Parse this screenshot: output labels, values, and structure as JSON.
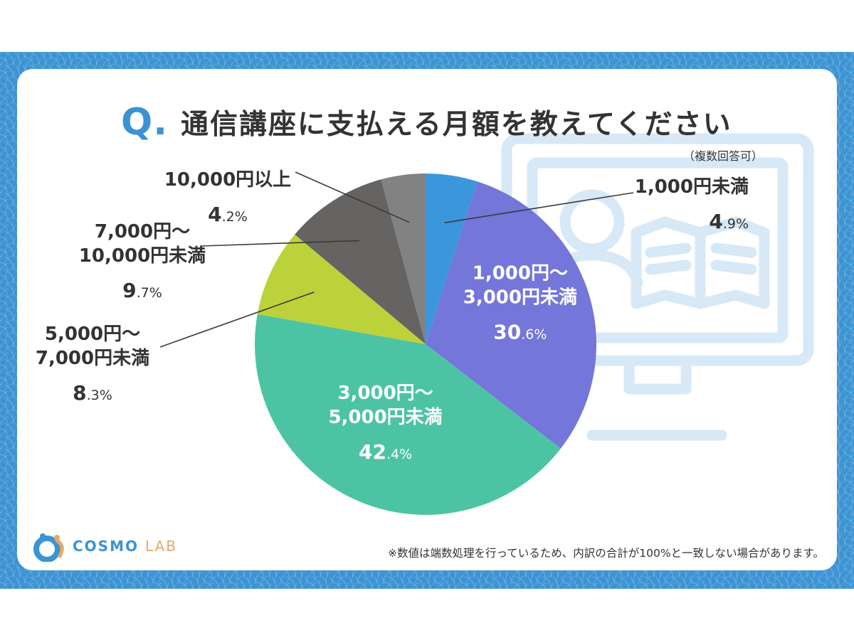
{
  "title": {
    "q_mark": "Q.",
    "text": "通信講座に支払える月額を教えてください",
    "note": "（複数回答可）"
  },
  "footnote": "※数値は端数処理を行っているため、内訳の合計が100%と一致しない場合があります。",
  "logo": {
    "main": "COSMO",
    "sub": "LAB"
  },
  "colors": {
    "frame": "#3c93d3",
    "card": "#ffffff",
    "background_icon": "#d7e8f6",
    "text": "#333333"
  },
  "icons": {
    "background": "monitor-reading-person-icon",
    "logo": "cosmo-lab-logo-icon"
  },
  "chart_data": {
    "type": "pie",
    "title": "通信講座に支払える月額を教えてください",
    "start_angle_deg": 0,
    "direction": "clockwise",
    "slices": [
      {
        "lines": [
          "1,000円未満"
        ],
        "big": "4",
        "small": ".9%",
        "value": 4.9,
        "color": "#3c96dc",
        "label_inside": false
      },
      {
        "lines": [
          "1,000円～",
          "3,000円未満"
        ],
        "big": "30",
        "small": ".6%",
        "value": 30.6,
        "color": "#7476d9",
        "label_inside": true
      },
      {
        "lines": [
          "3,000円～",
          "5,000円未満"
        ],
        "big": "42",
        "small": ".4%",
        "value": 42.4,
        "color": "#4cc4a3",
        "label_inside": true
      },
      {
        "lines": [
          "5,000円～",
          "7,000円未満"
        ],
        "big": "8",
        "small": ".3%",
        "value": 8.3,
        "color": "#bcd23a",
        "label_inside": false
      },
      {
        "lines": [
          "7,000円～",
          "10,000円未満"
        ],
        "big": "9",
        "small": ".7%",
        "value": 9.7,
        "color": "#656463",
        "label_inside": false
      },
      {
        "lines": [
          "10,000円以上"
        ],
        "big": "4",
        "small": ".2%",
        "value": 4.2,
        "color": "#828282",
        "label_inside": false
      }
    ]
  }
}
